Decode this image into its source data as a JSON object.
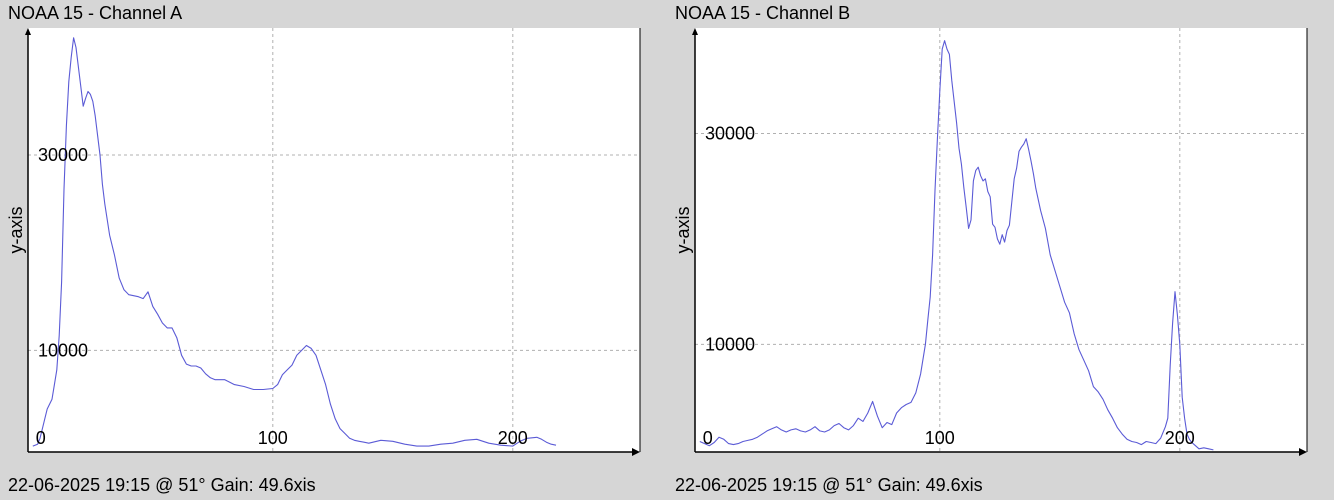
{
  "chart_data": [
    {
      "type": "line",
      "title": "NOAA 15 - Channel A",
      "ylabel": "y-axis",
      "xlabel": "",
      "footer": "22-06-2025 19:15 @ 51° Gain: 49.6",
      "footer_suffix": "xis",
      "xlim": [
        -2,
        253
      ],
      "ylim": [
        -400,
        43000
      ],
      "xticks": [
        0,
        100,
        200
      ],
      "yticks": [
        10000,
        30000
      ],
      "grid": true,
      "color": "#5b5bd6",
      "series": [
        {
          "x": [
            0,
            2,
            3,
            4,
            5,
            6,
            7,
            8,
            9,
            10,
            11,
            12,
            13,
            14,
            15,
            16,
            17,
            18,
            19,
            20,
            21,
            22,
            23,
            24,
            25,
            26,
            27,
            28,
            29,
            30,
            32,
            34,
            36,
            38,
            40,
            42,
            44,
            46,
            48,
            50,
            52,
            54,
            56,
            58,
            60,
            62,
            64,
            66,
            68,
            70,
            72,
            74,
            76,
            78,
            80,
            84,
            88,
            92,
            96,
            100,
            102,
            104,
            106,
            108,
            110,
            112,
            114,
            116,
            118,
            120,
            122,
            124,
            126,
            128,
            130,
            132,
            134,
            136,
            138,
            140,
            145,
            150,
            155,
            160,
            165,
            170,
            175,
            180,
            185,
            190,
            195,
            200,
            203,
            206,
            210,
            212,
            214,
            216,
            218
          ],
          "y": [
            200,
            400,
            1000,
            2000,
            3000,
            4000,
            4500,
            5000,
            6500,
            8000,
            11500,
            17000,
            26500,
            33000,
            37500,
            40000,
            42000,
            41000,
            39000,
            37000,
            35000,
            35800,
            36500,
            36200,
            35500,
            34000,
            32000,
            30000,
            27000,
            25000,
            21800,
            19800,
            17400,
            16200,
            15700,
            15600,
            15500,
            15300,
            16000,
            14500,
            13700,
            12800,
            12300,
            12300,
            11300,
            9500,
            8600,
            8400,
            8400,
            8200,
            7600,
            7200,
            7000,
            7000,
            7000,
            6500,
            6300,
            6000,
            6000,
            6100,
            6500,
            7500,
            8000,
            8500,
            9500,
            10000,
            10500,
            10200,
            9500,
            8000,
            6500,
            4500,
            3000,
            2000,
            1500,
            1000,
            800,
            700,
            600,
            500,
            800,
            700,
            400,
            200,
            200,
            400,
            500,
            800,
            900,
            500,
            300,
            200,
            700,
            1000,
            1100,
            900,
            600,
            400,
            300
          ]
        }
      ]
    },
    {
      "type": "line",
      "title": "NOAA 15 - Channel B",
      "ylabel": "y-axis",
      "xlabel": "",
      "footer": "22-06-2025 19:15 @ 51° Gain: 49.6",
      "footer_suffix": "xis",
      "xlim": [
        -2,
        253
      ],
      "ylim": [
        -200,
        40000
      ],
      "xticks": [
        0,
        100,
        200
      ],
      "yticks": [
        10000,
        30000
      ],
      "grid": true,
      "color": "#5b5bd6",
      "series": [
        {
          "x": [
            0,
            4,
            6,
            8,
            10,
            12,
            14,
            16,
            18,
            20,
            22,
            24,
            26,
            28,
            30,
            32,
            34,
            36,
            38,
            40,
            42,
            44,
            46,
            48,
            50,
            52,
            54,
            56,
            58,
            60,
            62,
            64,
            66,
            68,
            70,
            72,
            74,
            76,
            78,
            80,
            82,
            84,
            86,
            88,
            90,
            92,
            94,
            95,
            96,
            97,
            98,
            99,
            100,
            101,
            102,
            103,
            104,
            105,
            106,
            107,
            108,
            109,
            110,
            111,
            112,
            113,
            114,
            115,
            116,
            117,
            118,
            119,
            120,
            121,
            122,
            123,
            124,
            125,
            126,
            127,
            128,
            129,
            130,
            131,
            132,
            133,
            134,
            135,
            136,
            137,
            138,
            139,
            140,
            142,
            144,
            146,
            148,
            150,
            152,
            154,
            156,
            158,
            160,
            162,
            164,
            166,
            168,
            170,
            172,
            174,
            176,
            178,
            180,
            182,
            184,
            186,
            188,
            190,
            192,
            194,
            195,
            196,
            197,
            198,
            199,
            200,
            201,
            202,
            203,
            204,
            205,
            206,
            207,
            208,
            210,
            212,
            214
          ],
          "y": [
            800,
            400,
            700,
            1200,
            1000,
            600,
            500,
            600,
            800,
            900,
            1000,
            1200,
            1500,
            1800,
            2000,
            2200,
            1900,
            1700,
            1900,
            2000,
            1800,
            1700,
            1900,
            2200,
            1800,
            1700,
            1900,
            2300,
            2500,
            2100,
            1900,
            2300,
            3000,
            2700,
            3500,
            4600,
            3200,
            2100,
            2600,
            2400,
            3500,
            4000,
            4300,
            4500,
            5400,
            7200,
            10000,
            12300,
            14500,
            18500,
            24600,
            29500,
            34000,
            38000,
            38800,
            38000,
            37500,
            35000,
            33000,
            31000,
            28600,
            27100,
            24900,
            23000,
            21000,
            21800,
            25500,
            26500,
            26800,
            26000,
            25500,
            25700,
            24500,
            24000,
            21400,
            21100,
            20000,
            19500,
            20400,
            19700,
            20800,
            21300,
            23500,
            25700,
            26700,
            28300,
            28700,
            29000,
            29500,
            28500,
            27400,
            26200,
            24800,
            22700,
            21000,
            18500,
            17000,
            15500,
            14000,
            13000,
            11000,
            9500,
            8500,
            7500,
            6000,
            5500,
            4800,
            3800,
            3000,
            2100,
            1500,
            1000,
            800,
            700,
            500,
            800,
            700,
            600,
            1100,
            2200,
            3000,
            8000,
            12000,
            15000,
            12800,
            10000,
            5000,
            3000,
            1500,
            1000,
            700,
            500,
            300,
            100,
            200,
            100,
            0
          ]
        }
      ]
    }
  ]
}
